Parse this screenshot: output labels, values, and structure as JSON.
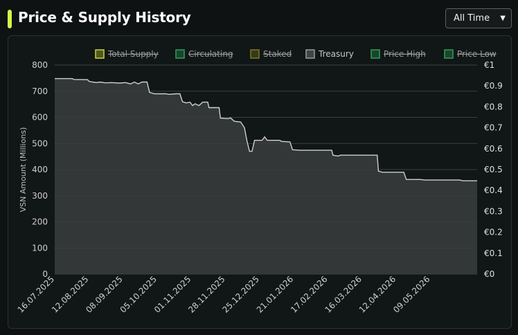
{
  "header": {
    "title": "Price & Supply History"
  },
  "range_select": {
    "value": "All Time",
    "chevron_icon": "chevron-down-icon"
  },
  "colors": {
    "accent": "#d7f54a",
    "treasury_line": "#cfcfcf",
    "treasury_fill": "#3a3d3d",
    "total_supply": "#c8d43a",
    "circulating": "#2f9e5a",
    "staked": "#7a7a22",
    "price_high": "#2f9e5a",
    "price_low": "#2f9e5a"
  },
  "chart_data": {
    "type": "area",
    "title": "",
    "xlabel": "",
    "ylabel": "VSN Amount (Millions)",
    "ylim": [
      0,
      800
    ],
    "y_ticks": [
      "0",
      "100",
      "200",
      "300",
      "400",
      "500",
      "600",
      "700",
      "800"
    ],
    "y2lim": [
      0,
      1
    ],
    "y2_ticks": [
      "€0",
      "€0.1",
      "€0.2",
      "€0.3",
      "€0.4",
      "€0.5",
      "€0.6",
      "€0.7",
      "€0.8",
      "€0.9",
      "€1"
    ],
    "x_ticks": [
      "16.07.2025",
      "12.08.2025",
      "08.09.2025",
      "05.10.2025",
      "01.11.2025",
      "28.11.2025",
      "25.12.2025",
      "21.01.2026",
      "17.02.2026",
      "16.03.2026",
      "12.04.2026",
      "09.05.2026"
    ],
    "grid": true,
    "legend_position": "top",
    "legend": [
      {
        "name": "Total Supply",
        "hidden": true
      },
      {
        "name": "Circulating",
        "hidden": true
      },
      {
        "name": "Staked",
        "hidden": true
      },
      {
        "name": "Treasury",
        "hidden": false
      },
      {
        "name": "Price High",
        "hidden": true
      },
      {
        "name": "Price Low",
        "hidden": true
      }
    ],
    "series": [
      {
        "name": "Treasury",
        "points": [
          [
            "2025-07-16",
            748
          ],
          [
            "2025-07-30",
            748
          ],
          [
            "2025-07-31",
            745
          ],
          [
            "2025-08-11",
            744
          ],
          [
            "2025-08-12",
            738
          ],
          [
            "2025-08-15",
            735
          ],
          [
            "2025-08-18",
            733
          ],
          [
            "2025-08-21",
            735
          ],
          [
            "2025-08-25",
            732
          ],
          [
            "2025-08-30",
            733
          ],
          [
            "2025-09-05",
            731
          ],
          [
            "2025-09-10",
            733
          ],
          [
            "2025-09-14",
            728
          ],
          [
            "2025-09-17",
            735
          ],
          [
            "2025-09-20",
            728
          ],
          [
            "2025-09-23",
            735
          ],
          [
            "2025-09-27",
            735
          ],
          [
            "2025-09-29",
            695
          ],
          [
            "2025-10-03",
            690
          ],
          [
            "2025-10-12",
            690
          ],
          [
            "2025-10-14",
            688
          ],
          [
            "2025-10-20",
            690
          ],
          [
            "2025-10-23",
            690
          ],
          [
            "2025-10-25",
            660
          ],
          [
            "2025-10-28",
            655
          ],
          [
            "2025-10-31",
            658
          ],
          [
            "2025-11-02",
            645
          ],
          [
            "2025-11-04",
            652
          ],
          [
            "2025-11-07",
            645
          ],
          [
            "2025-11-10",
            658
          ],
          [
            "2025-11-14",
            658
          ],
          [
            "2025-11-15",
            637
          ],
          [
            "2025-11-23",
            637
          ],
          [
            "2025-11-24",
            597
          ],
          [
            "2025-11-30",
            595
          ],
          [
            "2025-12-02",
            598
          ],
          [
            "2025-12-05",
            585
          ],
          [
            "2025-12-10",
            582
          ],
          [
            "2025-12-13",
            560
          ],
          [
            "2025-12-15",
            510
          ],
          [
            "2025-12-17",
            470
          ],
          [
            "2025-12-19",
            470
          ],
          [
            "2025-12-21",
            512
          ],
          [
            "2025-12-27",
            512
          ],
          [
            "2025-12-29",
            525
          ],
          [
            "2025-12-31",
            512
          ],
          [
            "2026-01-10",
            512
          ],
          [
            "2026-01-11",
            508
          ],
          [
            "2026-01-18",
            506
          ],
          [
            "2026-01-20",
            476
          ],
          [
            "2026-01-26",
            474
          ],
          [
            "2026-02-15",
            474
          ],
          [
            "2026-02-20",
            474
          ],
          [
            "2026-02-21",
            455
          ],
          [
            "2026-02-25",
            452
          ],
          [
            "2026-02-27",
            455
          ],
          [
            "2026-03-05",
            455
          ],
          [
            "2026-03-28",
            455
          ],
          [
            "2026-03-29",
            394
          ],
          [
            "2026-04-01",
            390
          ],
          [
            "2026-04-08",
            390
          ],
          [
            "2026-04-18",
            390
          ],
          [
            "2026-04-20",
            362
          ],
          [
            "2026-05-01",
            362
          ],
          [
            "2026-05-05",
            360
          ],
          [
            "2026-06-01",
            360
          ],
          [
            "2026-06-04",
            357
          ],
          [
            "2026-06-15",
            357
          ]
        ]
      }
    ]
  }
}
